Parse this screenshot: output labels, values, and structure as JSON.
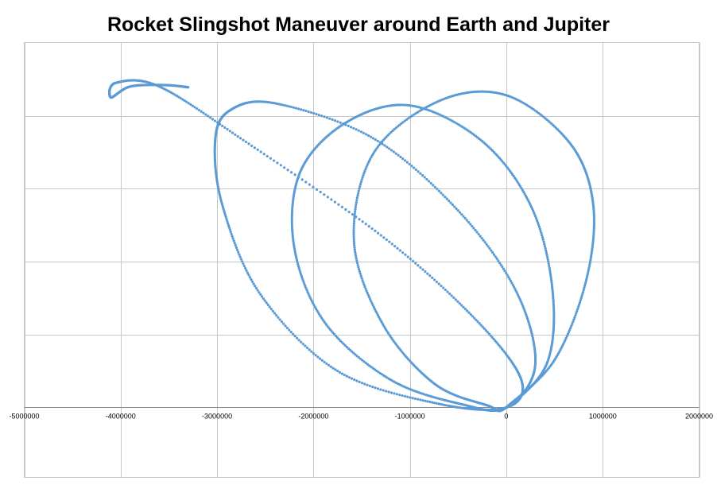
{
  "chart_data": {
    "type": "scatter",
    "title": "Rocket Slingshot Maneuver around Earth and Jupiter",
    "xlabel": "",
    "ylabel": "",
    "xlim": [
      -5000000,
      2000000
    ],
    "ylim": [
      -1000000,
      4000000
    ],
    "x_ticks": [
      -5000000,
      -4000000,
      -3000000,
      -2000000,
      -1000000,
      0,
      1000000,
      2000000
    ],
    "x_tick_labels": [
      "-5000000",
      "-4000000",
      "-3000000",
      "-2000000",
      "-1000000",
      "0",
      "1000000",
      "2000000"
    ],
    "y_gridlines": [
      1000000,
      2000000,
      3000000,
      4000000
    ],
    "grid": true,
    "legend": "none",
    "series": [
      {
        "color": "#5b9bd5",
        "marker": "small dots",
        "points": [
          [
            0,
            0
          ],
          [
            500000,
            650000
          ],
          [
            830000,
            1750000
          ],
          [
            900000,
            2800000
          ],
          [
            650000,
            3640000
          ],
          [
            0,
            4280000
          ],
          [
            -700000,
            4200000
          ],
          [
            -1380000,
            3480000
          ],
          [
            -1580000,
            2280000
          ],
          [
            -1280000,
            1140000
          ],
          [
            -750000,
            330000
          ],
          [
            -200000,
            30000
          ],
          [
            0,
            0
          ],
          [
            420000,
            600000
          ],
          [
            480000,
            1600000
          ],
          [
            260000,
            2750000
          ],
          [
            -250000,
            3650000
          ],
          [
            -1000000,
            4140000
          ],
          [
            -1670000,
            3900000
          ],
          [
            -2140000,
            3220000
          ],
          [
            -2200000,
            2200000
          ],
          [
            -1880000,
            1160000
          ],
          [
            -1200000,
            380000
          ],
          [
            -450000,
            40000
          ],
          [
            0,
            0
          ],
          [
            300000,
            580000
          ],
          [
            100000,
            1600000
          ],
          [
            -500000,
            2700000
          ],
          [
            -1380000,
            3690000
          ],
          [
            -2400000,
            4170000
          ],
          [
            -2870000,
            4070000
          ],
          [
            -3020000,
            3650000
          ],
          [
            -2940000,
            2750000
          ],
          [
            -2550000,
            1550000
          ],
          [
            -1750000,
            500000
          ],
          [
            -700000,
            50000
          ],
          [
            0,
            0
          ],
          [
            150000,
            400000
          ],
          [
            -350000,
            1250000
          ],
          [
            -1300000,
            2360000
          ],
          [
            -2700000,
            3640000
          ],
          [
            -3600000,
            4400000
          ],
          [
            -4050000,
            4450000
          ],
          [
            -4100000,
            4250000
          ],
          [
            -3900000,
            4400000
          ],
          [
            -3550000,
            4420000
          ],
          [
            -3300000,
            4390000
          ]
        ]
      }
    ]
  }
}
